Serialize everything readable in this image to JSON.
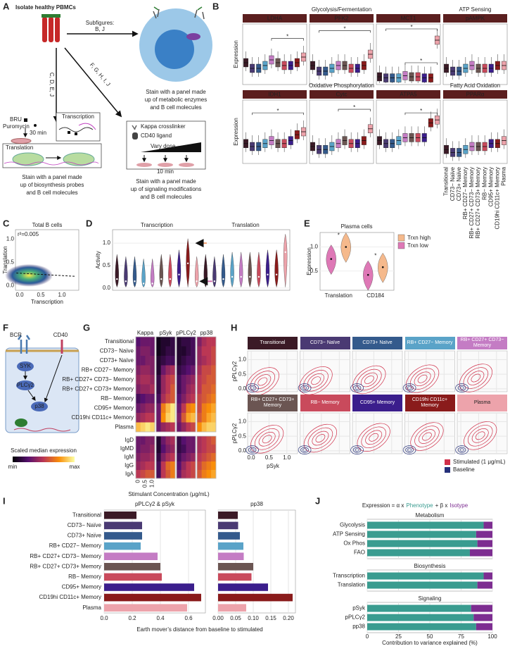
{
  "panel_labels": [
    "A",
    "B",
    "C",
    "D",
    "E",
    "F",
    "G",
    "H",
    "I",
    "J"
  ],
  "cell_types": [
    "Transitional",
    "CD73− Naïve",
    "CD73+ Naïve",
    "RB+ CD27− Memory",
    "RB+ CD27+ CD73− Memory",
    "RB+ CD27+ CD73+ Memory",
    "RB− Memory",
    "CD95+ Memory",
    "CD19hi CD11c+ Memory",
    "Plasma"
  ],
  "cell_colors": [
    "#3b1a26",
    "#4a3a73",
    "#345a8c",
    "#5aa3c8",
    "#c47cc4",
    "#6b5552",
    "#c94a5c",
    "#3b1e8c",
    "#8a1b1b",
    "#eda3ab"
  ],
  "schematic": {
    "title": "Isolate healthy PBMCs",
    "subfigures": [
      "Subfigures:",
      "B, J"
    ],
    "diagonal": "F, G, H, I, J",
    "vertical": "C, D, E, J",
    "stain_metabolic": [
      "Stain with a panel made",
      "up of metabolic enzymes",
      "and B cell molecules"
    ],
    "bru": "BRU",
    "puromycin": "Puromycin",
    "time_30": "30 min",
    "transcription": "Transcription",
    "translation": "Translation",
    "stain_bio": [
      "Stain with a panel made",
      "up of biosynthesis probes",
      "and B cell molecules"
    ],
    "kappa": "Kappa crosslinker",
    "cd40l": "CD40 ligand",
    "dose": "Vary dose",
    "time_10": "10 min",
    "stain_sig": [
      "Stain with a panel made",
      "up of signaling modifications",
      "and B cell molecules"
    ]
  },
  "pathway": {
    "bcr": "BCR",
    "cd40": "CD40",
    "syk": "SYK",
    "plc": "PLCγ2",
    "p38": "p38"
  },
  "chart_data": [
    {
      "type": "box",
      "ylabel": "Expression",
      "ylim": [
        0,
        1
      ],
      "sig_label": "*",
      "groups": [
        {
          "title": "Glycolysis/Fermentation",
          "title_color": "#8b1a1a",
          "facets": [
            {
              "name": "LDHA",
              "medians": [
                0.35,
                0.25,
                0.25,
                0.3,
                0.4,
                0.35,
                0.3,
                0.3,
                0.35,
                0.45
              ]
            },
            {
              "name": "PFK2",
              "medians": [
                0.3,
                0.2,
                0.2,
                0.25,
                0.3,
                0.3,
                0.25,
                0.25,
                0.3,
                0.5
              ]
            },
            {
              "name": "MCT1",
              "medians": [
                0.1,
                0.08,
                0.08,
                0.08,
                0.12,
                0.1,
                0.1,
                0.08,
                0.08,
                0.75
              ]
            }
          ]
        },
        {
          "title": "ATP Sensing",
          "title_color": "#6a8a2a",
          "facets": [
            {
              "name": "pAMPK",
              "medians": [
                0.25,
                0.2,
                0.2,
                0.25,
                0.3,
                0.25,
                0.25,
                0.25,
                0.3,
                0.3
              ]
            }
          ]
        },
        {
          "title": "Oxidative Phosphorylation",
          "title_color": "#a63a24",
          "facets": [
            {
              "name": "IDH1",
              "medians": [
                0.3,
                0.25,
                0.25,
                0.3,
                0.35,
                0.3,
                0.3,
                0.35,
                0.45,
                0.5
              ]
            },
            {
              "name": "Cytc",
              "medians": [
                0.25,
                0.2,
                0.2,
                0.25,
                0.3,
                0.35,
                0.3,
                0.3,
                0.35,
                0.55
              ]
            },
            {
              "name": "ATPA5",
              "medians": [
                0.35,
                0.3,
                0.3,
                0.35,
                0.4,
                0.4,
                0.4,
                0.4,
                0.65,
                0.7
              ]
            }
          ]
        },
        {
          "title": "Fatty Acid Oxidation",
          "title_color": "#b8982a",
          "facets": [
            {
              "name": "PPARα",
              "medians": [
                0.2,
                0.15,
                0.15,
                0.2,
                0.25,
                0.25,
                0.25,
                0.3,
                0.3,
                0.35
              ]
            }
          ]
        }
      ]
    },
    {
      "type": "scatter",
      "title": "Total B cells",
      "annotation": "r²=0.005",
      "xlabel": "Transcription",
      "ylabel": "Translation",
      "xlim": [
        -0.1,
        1.4
      ],
      "ylim": [
        -0.1,
        1.2
      ],
      "xticks": [
        {
          "value": 0,
          "label": "0.0"
        },
        0.5,
        {
          "value": 1,
          "label": "1.0"
        }
      ],
      "yticks": [
        {
          "value": 0,
          "label": "0.0"
        },
        0.5,
        {
          "value": 1,
          "label": "1.0"
        }
      ]
    },
    {
      "type": "violin",
      "ylabel": "Activity",
      "ylim": [
        -0.05,
        1.3
      ],
      "yticks": [
        {
          "value": 0,
          "label": "0.0"
        },
        0.5,
        {
          "value": 1,
          "label": "1.0"
        }
      ],
      "series": [
        {
          "name": "Transcription",
          "values": [
            0.2,
            0.15,
            0.15,
            0.1,
            0.1,
            0.2,
            0.2,
            0.3,
            0.55,
            0.15
          ]
        },
        {
          "name": "Translation",
          "values": [
            0.2,
            0.15,
            0.2,
            0.25,
            0.25,
            0.25,
            0.25,
            0.3,
            0.3,
            0.8
          ]
        }
      ]
    },
    {
      "type": "violin",
      "title": "Plasma cells",
      "ylabel": "Expression",
      "annotation": "*",
      "categories": [
        "Translation",
        "CD184"
      ],
      "ylim": [
        0.1,
        1.3
      ],
      "yticks": [
        0.5,
        {
          "value": 1,
          "label": "1.0"
        }
      ],
      "series": [
        {
          "name": "Trxn high",
          "color": "#f5b98c",
          "values": [
            1.0,
            0.58
          ]
        },
        {
          "name": "Trxn low",
          "color": "#de78b6",
          "values": [
            0.75,
            0.42
          ]
        }
      ]
    },
    {
      "type": "heatmap",
      "markers": [
        "Kappa",
        "pSyk",
        "pPLCγ2",
        "pp38"
      ],
      "xlabel": "Stimulant Concentration (μg/mL)",
      "xlim": [
        0,
        1
      ],
      "xticks": [
        0,
        0.5,
        {
          "value": 1,
          "label": "1.0"
        }
      ],
      "colorbar_title": "Scaled median expression",
      "colorbar_labels": [
        "min",
        "max"
      ],
      "values": [
        [
          0.25,
          0.3,
          0.3,
          0.3,
          0.05,
          0.1,
          0.1,
          0.15,
          0.1,
          0.15,
          0.15,
          0.2,
          0.35,
          0.45,
          0.5,
          0.5
        ],
        [
          0.3,
          0.35,
          0.35,
          0.3,
          0.05,
          0.1,
          0.15,
          0.15,
          0.1,
          0.1,
          0.15,
          0.2,
          0.4,
          0.5,
          0.5,
          0.55
        ],
        [
          0.3,
          0.3,
          0.35,
          0.35,
          0.1,
          0.15,
          0.2,
          0.2,
          0.1,
          0.15,
          0.2,
          0.2,
          0.4,
          0.45,
          0.5,
          0.55
        ],
        [
          0.35,
          0.4,
          0.4,
          0.35,
          0.1,
          0.3,
          0.4,
          0.45,
          0.15,
          0.2,
          0.25,
          0.3,
          0.45,
          0.55,
          0.55,
          0.6
        ],
        [
          0.4,
          0.45,
          0.45,
          0.4,
          0.15,
          0.4,
          0.5,
          0.55,
          0.2,
          0.3,
          0.35,
          0.4,
          0.5,
          0.55,
          0.6,
          0.6
        ],
        [
          0.35,
          0.4,
          0.4,
          0.45,
          0.15,
          0.4,
          0.5,
          0.6,
          0.2,
          0.3,
          0.4,
          0.45,
          0.5,
          0.6,
          0.6,
          0.65
        ],
        [
          0.2,
          0.25,
          0.3,
          0.3,
          0.2,
          0.45,
          0.55,
          0.6,
          0.25,
          0.35,
          0.45,
          0.5,
          0.55,
          0.6,
          0.65,
          0.7
        ],
        [
          0.3,
          0.35,
          0.4,
          0.4,
          0.3,
          0.7,
          0.85,
          0.95,
          0.3,
          0.5,
          0.7,
          0.75,
          0.55,
          0.7,
          0.75,
          0.8
        ],
        [
          0.4,
          0.45,
          0.5,
          0.5,
          0.3,
          0.75,
          0.9,
          0.95,
          0.35,
          0.6,
          0.8,
          0.85,
          0.6,
          0.7,
          0.8,
          0.85
        ],
        [
          0.85,
          0.9,
          0.95,
          0.9,
          0.3,
          0.4,
          0.45,
          0.5,
          0.3,
          0.4,
          0.5,
          0.55,
          0.75,
          0.85,
          0.9,
          0.9
        ]
      ],
      "isotypes": [
        "IgD",
        "IgMD",
        "IgM",
        "IgG",
        "IgA"
      ],
      "isotype_values": [
        [
          0.3,
          0.3,
          0.35,
          0.35,
          0.1,
          0.3,
          0.4,
          0.45,
          0.15,
          0.25,
          0.3,
          0.3,
          0.45,
          0.5,
          0.55,
          0.6
        ],
        [
          0.3,
          0.35,
          0.35,
          0.4,
          0.1,
          0.25,
          0.35,
          0.4,
          0.15,
          0.2,
          0.3,
          0.3,
          0.45,
          0.5,
          0.55,
          0.55
        ],
        [
          0.35,
          0.4,
          0.4,
          0.45,
          0.15,
          0.35,
          0.45,
          0.5,
          0.2,
          0.3,
          0.35,
          0.4,
          0.5,
          0.55,
          0.6,
          0.65
        ],
        [
          0.4,
          0.45,
          0.5,
          0.5,
          0.2,
          0.5,
          0.65,
          0.7,
          0.25,
          0.4,
          0.5,
          0.55,
          0.55,
          0.65,
          0.7,
          0.75
        ],
        [
          0.5,
          0.55,
          0.6,
          0.6,
          0.2,
          0.5,
          0.6,
          0.7,
          0.3,
          0.45,
          0.5,
          0.55,
          0.6,
          0.7,
          0.75,
          0.8
        ]
      ]
    },
    {
      "type": "contour",
      "xlabel": "pSyk",
      "ylabel": "pPLCγ2",
      "xlim": [
        -0.1,
        1.3
      ],
      "ylim": [
        -0.1,
        1.3
      ],
      "xticks": [
        {
          "value": 0,
          "label": "0.0"
        },
        0.5,
        {
          "value": 1,
          "label": "1.0"
        }
      ],
      "yticks": [
        {
          "value": 0,
          "label": "0.0"
        },
        0.5,
        {
          "value": 1,
          "label": "1.0"
        }
      ],
      "series": [
        {
          "name": "Stimulated (1 μg/mL)",
          "color": "#d0304a"
        },
        {
          "name": "Baseline",
          "color": "#25307a"
        }
      ]
    },
    {
      "type": "bar",
      "orientation": "horizontal",
      "title": "pPLCγ2 & pSyk",
      "xlabel": "Earth mover’s distance from baseline to stimulated",
      "values": [
        0.23,
        0.27,
        0.27,
        0.26,
        0.38,
        0.4,
        0.41,
        0.64,
        0.69,
        0.59
      ],
      "xlim": [
        0,
        0.72
      ],
      "xticks": [
        {
          "value": 0,
          "label": "0.0"
        },
        0.2,
        0.4,
        0.6
      ]
    },
    {
      "type": "bar",
      "orientation": "horizontal",
      "title": "pp38",
      "values": [
        0.056,
        0.057,
        0.062,
        0.072,
        0.073,
        0.1,
        0.095,
        0.142,
        0.212,
        0.08
      ],
      "xlim": [
        0,
        0.22
      ],
      "xticks": [
        {
          "value": 0,
          "label": "0.00"
        },
        0.05,
        {
          "value": 0.1,
          "label": "0.10"
        },
        0.15,
        {
          "value": 0.2,
          "label": "0.20"
        }
      ]
    },
    {
      "type": "stacked_bar",
      "orientation": "horizontal",
      "title": [
        "Expression = α x",
        "Phenotype",
        "+ β x",
        "Isotype"
      ],
      "xlabel": "Contribution to variance explained (%)",
      "xlim": [
        0,
        100
      ],
      "xticks": [
        0,
        25,
        50,
        75,
        100
      ],
      "series_colors": [
        "#3a9c90",
        "#7d2d91"
      ],
      "groups": [
        {
          "title": "Metabolism",
          "categories": [
            "Glycolysis",
            "ATP Sensing",
            "Ox Phos",
            "FAO"
          ],
          "label_colors": [
            "#222222",
            "#6a8a2a",
            "#a63a24",
            "#b8982a"
          ],
          "series": [
            {
              "name": "Phenotype",
              "values": [
                93,
                87,
                88,
                82
              ]
            },
            {
              "name": "Isotype",
              "values": [
                7,
                13,
                12,
                18
              ]
            }
          ]
        },
        {
          "title": "Biosynthesis",
          "categories": [
            "Transcription",
            "Translation"
          ],
          "label_colors": [
            "#222222",
            "#222222"
          ],
          "series": [
            {
              "name": "Phenotype",
              "values": [
                93,
                88
              ]
            },
            {
              "name": "Isotype",
              "values": [
                7,
                12
              ]
            }
          ]
        },
        {
          "title": "Signaling",
          "categories": [
            "pSyk",
            "pPLCγ2",
            "pp38"
          ],
          "label_colors": [
            "#222222",
            "#222222",
            "#222222"
          ],
          "series": [
            {
              "name": "Phenotype",
              "values": [
                83,
                85,
                87
              ]
            },
            {
              "name": "Isotype",
              "values": [
                17,
                15,
                13
              ]
            }
          ]
        }
      ]
    }
  ]
}
